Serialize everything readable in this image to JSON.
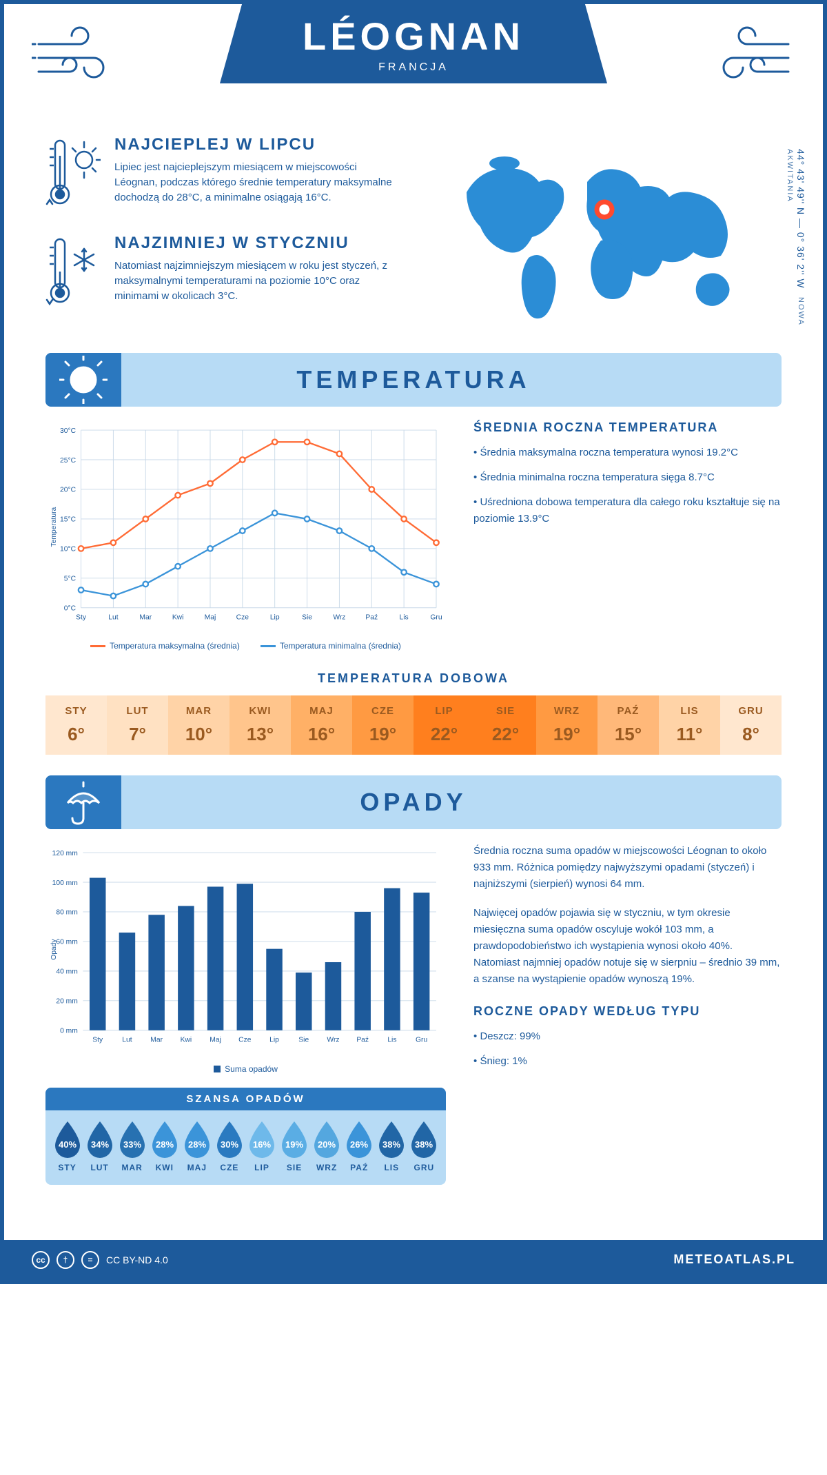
{
  "header": {
    "city": "LÉOGNAN",
    "country": "FRANCJA"
  },
  "coords": {
    "lat": "44° 43' 49'' N — 0° 36' 2'' W",
    "region": "NOWA AKWITANIA"
  },
  "facts": {
    "hot": {
      "title": "NAJCIEPLEJ W LIPCU",
      "text": "Lipiec jest najcieplejszym miesiącem w miejscowości Léognan, podczas którego średnie temperatury maksymalne dochodzą do 28°C, a minimalne osiągają 16°C."
    },
    "cold": {
      "title": "NAJZIMNIEJ W STYCZNIU",
      "text": "Natomiast najzimniejszym miesiącem w roku jest styczeń, z maksymalnymi temperaturami na poziomie 10°C oraz minimami w okolicach 3°C."
    }
  },
  "months": [
    "Sty",
    "Lut",
    "Mar",
    "Kwi",
    "Maj",
    "Cze",
    "Lip",
    "Sie",
    "Wrz",
    "Paź",
    "Lis",
    "Gru"
  ],
  "months_upper": [
    "STY",
    "LUT",
    "MAR",
    "KWI",
    "MAJ",
    "CZE",
    "LIP",
    "SIE",
    "WRZ",
    "PAŹ",
    "LIS",
    "GRU"
  ],
  "temp_section": {
    "title": "TEMPERATURA",
    "chart": {
      "type": "line",
      "ylabel": "Temperatura",
      "ylim": [
        0,
        30
      ],
      "ytick_step": 5,
      "y_ticks": [
        "0°C",
        "5°C",
        "10°C",
        "15°C",
        "20°C",
        "25°C",
        "30°C"
      ],
      "series": {
        "max": {
          "label": "Temperatura maksymalna (średnia)",
          "color": "#ff6b35",
          "values": [
            10,
            11,
            15,
            19,
            21,
            25,
            28,
            28,
            26,
            20,
            15,
            11
          ]
        },
        "min": {
          "label": "Temperatura minimalna (średnia)",
          "color": "#3b94d9",
          "values": [
            3,
            2,
            4,
            7,
            10,
            13,
            16,
            15,
            13,
            10,
            6,
            4
          ]
        }
      },
      "grid_color": "#c9d9e8"
    },
    "side": {
      "title": "ŚREDNIA ROCZNA TEMPERATURA",
      "items": [
        "Średnia maksymalna roczna temperatura wynosi 19.2°C",
        "Średnia minimalna roczna temperatura sięga 8.7°C",
        "Uśredniona dobowa temperatura dla całego roku kształtuje się na poziomie 13.9°C"
      ]
    },
    "daily": {
      "title": "TEMPERATURA DOBOWA",
      "values": [
        "6°",
        "7°",
        "10°",
        "13°",
        "16°",
        "19°",
        "22°",
        "22°",
        "19°",
        "15°",
        "11°",
        "8°"
      ],
      "colors": [
        "#ffe7cf",
        "#ffe1c2",
        "#ffd3a7",
        "#ffc58c",
        "#ffb066",
        "#ff9a42",
        "#ff7f1e",
        "#ff7f1e",
        "#ff9a42",
        "#ffb879",
        "#ffd3a7",
        "#ffe7cf"
      ],
      "text_color": "#9a5a20"
    }
  },
  "precip_section": {
    "title": "OPADY",
    "chart": {
      "type": "bar",
      "ylabel": "Opady",
      "ylim": [
        0,
        120
      ],
      "ytick_step": 20,
      "y_ticks": [
        "0 mm",
        "20 mm",
        "40 mm",
        "60 mm",
        "80 mm",
        "100 mm",
        "120 mm"
      ],
      "values": [
        103,
        66,
        78,
        84,
        97,
        99,
        55,
        39,
        46,
        80,
        96,
        93
      ],
      "bar_color": "#1d5a9b",
      "legend": "Suma opadów",
      "grid_color": "#c9d9e8"
    },
    "side_paras": [
      "Średnia roczna suma opadów w miejscowości Léognan to około 933 mm. Różnica pomiędzy najwyższymi opadami (styczeń) i najniższymi (sierpień) wynosi 64 mm.",
      "Najwięcej opadów pojawia się w styczniu, w tym okresie miesięczna suma opadów oscyluje wokół 103 mm, a prawdopodobieństwo ich wystąpienia wynosi około 40%. Natomiast najmniej opadów notuje się w sierpniu – średnio 39 mm, a szanse na wystąpienie opadów wynoszą 19%."
    ],
    "chance": {
      "title": "SZANSA OPADÓW",
      "values": [
        "40%",
        "34%",
        "33%",
        "28%",
        "28%",
        "30%",
        "16%",
        "19%",
        "20%",
        "26%",
        "38%",
        "38%"
      ],
      "colors": [
        "#1d5a9b",
        "#2166a6",
        "#2771b1",
        "#3b94d9",
        "#3b94d9",
        "#2a7ac0",
        "#6eb9ea",
        "#5aade4",
        "#54a7df",
        "#3b94d9",
        "#2166a6",
        "#2166a6"
      ]
    },
    "by_type": {
      "title": "ROCZNE OPADY WEDŁUG TYPU",
      "items": [
        "Deszcz: 99%",
        "Śnieg: 1%"
      ]
    }
  },
  "footer": {
    "license": "CC BY-ND 4.0",
    "brand": "METEOATLAS.PL"
  }
}
